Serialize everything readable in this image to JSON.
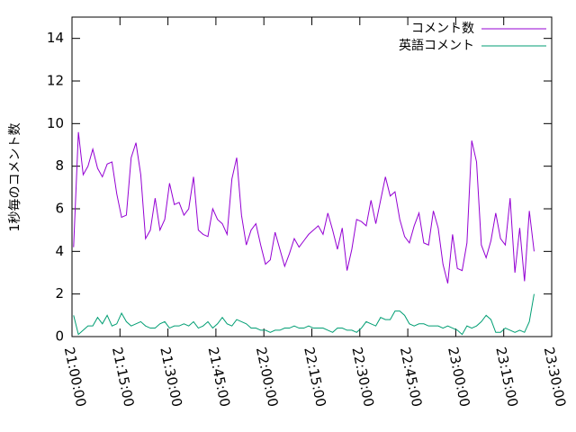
{
  "chart_data": {
    "type": "line",
    "ylabel": "1秒毎のコメント数",
    "x": [
      "21:00:30",
      "21:02:00",
      "21:03:30",
      "21:05:00",
      "21:06:30",
      "21:08:00",
      "21:09:30",
      "21:11:00",
      "21:12:30",
      "21:14:00",
      "21:15:30",
      "21:17:00",
      "21:18:30",
      "21:20:00",
      "21:21:30",
      "21:23:00",
      "21:24:30",
      "21:26:00",
      "21:27:30",
      "21:29:00",
      "21:30:30",
      "21:32:00",
      "21:33:30",
      "21:35:00",
      "21:36:30",
      "21:38:00",
      "21:39:30",
      "21:41:00",
      "21:42:30",
      "21:44:00",
      "21:45:30",
      "21:47:00",
      "21:48:30",
      "21:50:00",
      "21:51:30",
      "21:53:00",
      "21:54:30",
      "21:56:00",
      "21:57:30",
      "21:59:00",
      "22:00:30",
      "22:02:00",
      "22:03:30",
      "22:05:00",
      "22:06:30",
      "22:08:00",
      "22:09:30",
      "22:11:00",
      "22:12:30",
      "22:14:00",
      "22:15:30",
      "22:17:00",
      "22:18:30",
      "22:20:00",
      "22:21:30",
      "22:23:00",
      "22:24:30",
      "22:26:00",
      "22:27:30",
      "22:29:00",
      "22:30:30",
      "22:32:00",
      "22:33:30",
      "22:35:00",
      "22:36:30",
      "22:38:00",
      "22:39:30",
      "22:41:00",
      "22:42:30",
      "22:44:00",
      "22:45:30",
      "22:47:00",
      "22:48:30",
      "22:50:00",
      "22:51:30",
      "22:53:00",
      "22:54:30",
      "22:56:00",
      "22:57:30",
      "22:59:00",
      "23:00:30",
      "23:02:00",
      "23:03:30",
      "23:05:00",
      "23:06:30",
      "23:08:00",
      "23:09:30",
      "23:11:00",
      "23:12:30",
      "23:14:00",
      "23:15:30",
      "23:17:00",
      "23:18:30",
      "23:20:00",
      "23:21:30",
      "23:23:00",
      "23:24:30"
    ],
    "series": [
      {
        "name": "コメント数",
        "color": "#9400d3",
        "values": [
          4.2,
          9.6,
          7.6,
          8.0,
          8.8,
          7.9,
          7.5,
          8.1,
          8.2,
          6.7,
          5.6,
          5.7,
          8.4,
          9.1,
          7.6,
          4.6,
          5.0,
          6.5,
          5.0,
          5.5,
          7.2,
          6.2,
          6.3,
          5.7,
          6.0,
          7.5,
          5.0,
          4.8,
          4.7,
          6.0,
          5.5,
          5.3,
          4.8,
          7.4,
          8.4,
          5.7,
          4.3,
          5.0,
          5.3,
          4.3,
          3.4,
          3.6,
          4.9,
          4.1,
          3.3,
          3.9,
          4.6,
          4.2,
          4.5,
          4.8,
          5.0,
          5.2,
          4.8,
          5.8,
          5.0,
          4.1,
          5.1,
          3.1,
          4.1,
          5.5,
          5.4,
          5.2,
          6.4,
          5.3,
          6.4,
          7.5,
          6.6,
          6.8,
          5.5,
          4.7,
          4.4,
          5.2,
          5.8,
          4.4,
          4.3,
          5.9,
          5.1,
          3.4,
          2.5,
          4.8,
          3.2,
          3.1,
          4.4,
          9.2,
          8.2,
          4.3,
          3.7,
          4.5,
          5.8,
          4.6,
          4.3,
          6.5,
          3.0,
          5.1,
          2.6,
          5.9,
          4.0
        ]
      },
      {
        "name": "英語コメント",
        "color": "#009e73",
        "values": [
          1.0,
          0.1,
          0.3,
          0.5,
          0.5,
          0.9,
          0.6,
          1.0,
          0.5,
          0.6,
          1.1,
          0.7,
          0.5,
          0.6,
          0.7,
          0.5,
          0.4,
          0.4,
          0.6,
          0.7,
          0.4,
          0.5,
          0.5,
          0.6,
          0.5,
          0.7,
          0.4,
          0.5,
          0.7,
          0.4,
          0.6,
          0.9,
          0.6,
          0.5,
          0.8,
          0.7,
          0.6,
          0.4,
          0.4,
          0.3,
          0.3,
          0.2,
          0.3,
          0.3,
          0.4,
          0.4,
          0.5,
          0.4,
          0.4,
          0.5,
          0.4,
          0.4,
          0.4,
          0.3,
          0.2,
          0.4,
          0.4,
          0.3,
          0.3,
          0.2,
          0.4,
          0.7,
          0.6,
          0.5,
          0.9,
          0.8,
          0.8,
          1.2,
          1.2,
          1.0,
          0.6,
          0.5,
          0.6,
          0.6,
          0.5,
          0.5,
          0.5,
          0.4,
          0.5,
          0.4,
          0.3,
          0.1,
          0.5,
          0.4,
          0.5,
          0.7,
          1.0,
          0.8,
          0.2,
          0.2,
          0.4,
          0.3,
          0.2,
          0.3,
          0.2,
          0.7,
          2.0
        ]
      }
    ],
    "xlim": [
      "21:00:00",
      "23:30:00"
    ],
    "xticks": [
      "21:00:00",
      "21:15:00",
      "21:30:00",
      "21:45:00",
      "22:00:00",
      "22:15:00",
      "22:30:00",
      "22:45:00",
      "23:00:00",
      "23:15:00",
      "23:30:00"
    ],
    "ylim": [
      0,
      15
    ],
    "yticks": [
      0,
      2,
      4,
      6,
      8,
      10,
      12,
      14
    ],
    "legend": "top-right"
  }
}
